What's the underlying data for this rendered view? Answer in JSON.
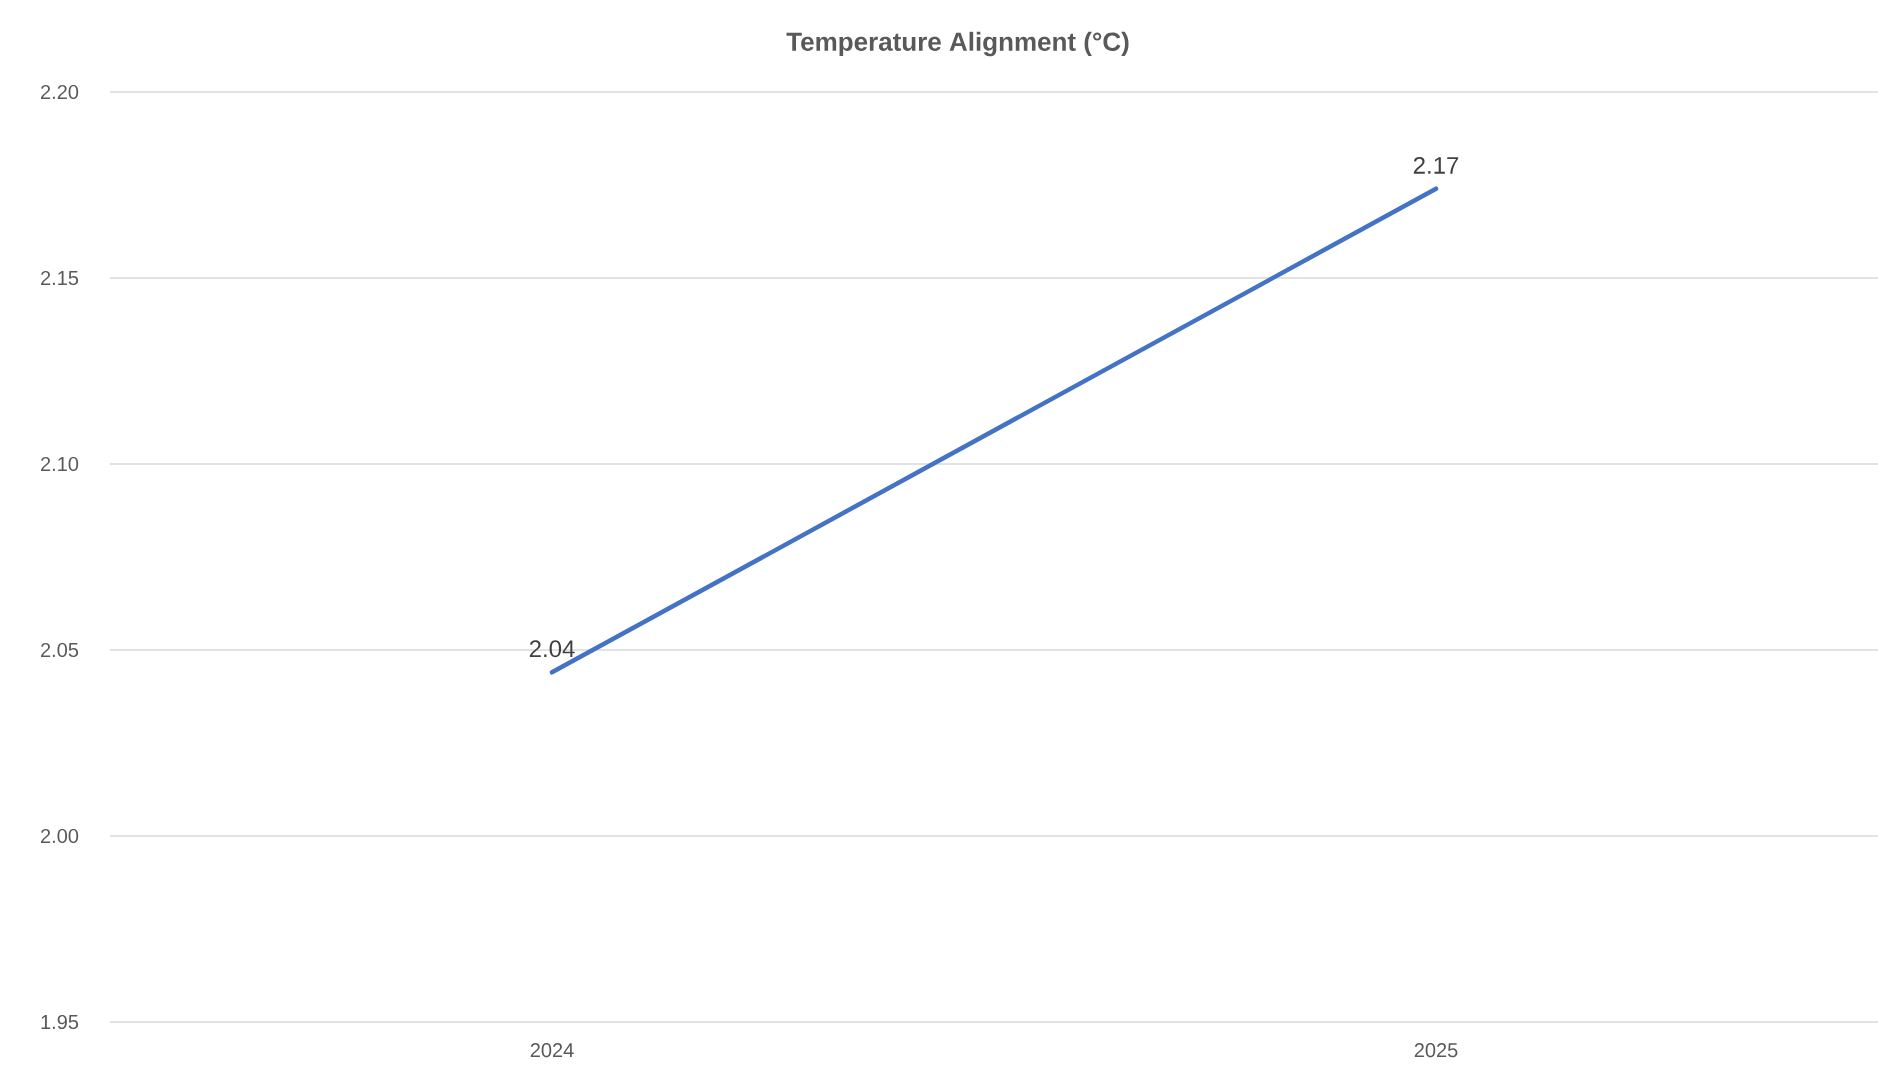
{
  "chart_data": {
    "type": "line",
    "title": "Temperature Alignment (°C)",
    "categories": [
      "2024",
      "2025"
    ],
    "series": [
      {
        "color": "#4472c4",
        "values": [
          2.044,
          2.174
        ],
        "value_labels": [
          "2.04",
          "2.17"
        ]
      }
    ],
    "ylim": [
      1.95,
      2.2
    ],
    "yticks": [
      1.95,
      {
        "value": 2.0,
        "label": "2.00"
      },
      2.05,
      {
        "value": 2.1,
        "label": "2.10"
      },
      2.15,
      {
        "value": 2.2,
        "label": "2.20"
      }
    ],
    "grid": "y"
  }
}
